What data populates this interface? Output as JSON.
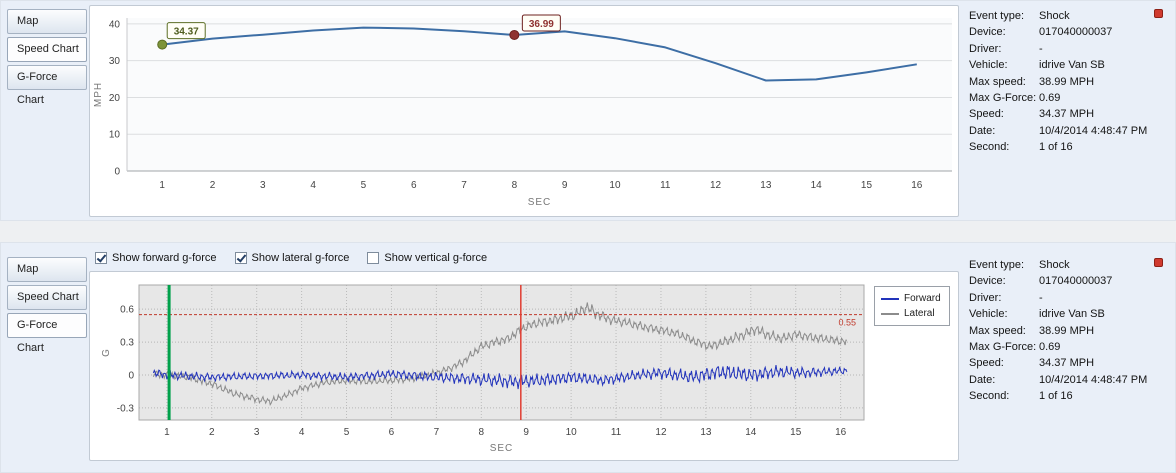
{
  "tabs": {
    "items": [
      "Map",
      "Speed Chart",
      "G-Force Chart"
    ]
  },
  "panels": {
    "top": {
      "active_tab": "Speed Chart"
    },
    "bottom": {
      "active_tab": "G-Force Chart"
    }
  },
  "gforce_toolbar": {
    "checkboxes": [
      {
        "label": "Show forward g-force",
        "checked": true
      },
      {
        "label": "Show lateral g-force",
        "checked": true
      },
      {
        "label": "Show vertical g-force",
        "checked": false
      }
    ]
  },
  "legend": {
    "entries": [
      {
        "label": "Forward",
        "color": "#2233bb"
      },
      {
        "label": "Lateral",
        "color": "#8c8c8c"
      }
    ]
  },
  "details": {
    "rows": [
      {
        "label": "Event type:",
        "value": "Shock"
      },
      {
        "label": "Device:",
        "value": "017040000037"
      },
      {
        "label": "Driver:",
        "value": "-"
      },
      {
        "label": "Vehicle:",
        "value": "idrive Van SB"
      },
      {
        "label": "Max speed:",
        "value": "38.99 MPH"
      },
      {
        "label": "Max G-Force:",
        "value": "0.69"
      },
      {
        "label": "Speed:",
        "value": "34.37 MPH"
      },
      {
        "label": "Date:",
        "value": "10/4/2014 4:48:47 PM"
      },
      {
        "label": "Second:",
        "value": "1 of 16"
      }
    ]
  },
  "chart_data": [
    {
      "type": "line",
      "title": "Speed Chart",
      "xlabel": "SEC",
      "ylabel": "MPH",
      "x": [
        1,
        2,
        3,
        4,
        5,
        6,
        7,
        8,
        9,
        10,
        11,
        12,
        13,
        14,
        15,
        16
      ],
      "values": [
        34.37,
        36.0,
        37.05,
        38.2,
        38.99,
        38.75,
        38.0,
        36.99,
        37.95,
        36.1,
        33.6,
        29.3,
        24.6,
        24.9,
        26.8,
        29.0
      ],
      "x_ticks": [
        1,
        2,
        3,
        4,
        5,
        6,
        7,
        8,
        9,
        10,
        11,
        12,
        13,
        14,
        15,
        16
      ],
      "y_ticks": [
        0,
        10,
        20,
        30,
        40
      ],
      "xlim": [
        0.3,
        16.7
      ],
      "ylim": [
        0,
        41.6
      ],
      "grid": true,
      "line_color": "#3d6ea5",
      "annotations": [
        {
          "x": 1,
          "value": 34.37,
          "label": "34.37",
          "marker_color": "#7d943a",
          "marker_border": "#5c6e25",
          "text_color": "#4f5d1e",
          "box_dx": 5,
          "box_dy": -22
        },
        {
          "x": 8,
          "value": 36.99,
          "label": "36.99",
          "marker_color": "#8f3230",
          "marker_border": "#6d201e",
          "text_color": "#8f3230",
          "box_dx": 8,
          "box_dy": -20
        }
      ]
    },
    {
      "type": "line",
      "title": "G-Force Chart",
      "xlabel": "SEC",
      "ylabel": "G",
      "x_ticks": [
        1,
        2,
        3,
        4,
        5,
        6,
        7,
        8,
        9,
        10,
        11,
        12,
        13,
        14,
        15,
        16
      ],
      "y_ticks": [
        -0.3,
        0,
        0.3,
        0.6
      ],
      "xlim": [
        0.38,
        16.52
      ],
      "ylim": [
        -0.41,
        0.82
      ],
      "grid": "dotted",
      "legend_position": "right",
      "threshold": {
        "value": 0.55,
        "label": "0.55",
        "color": "#c0392b"
      },
      "event_lines": [
        {
          "name": "event-start",
          "x": 1.05,
          "color": "#00a14b",
          "width": 3
        },
        {
          "name": "shock-moment",
          "x": 8.88,
          "color": "#e03c31",
          "width": 1.5
        }
      ],
      "sample_range": [
        0.7,
        16.15
      ],
      "series": [
        {
          "name": "Forward",
          "color": "#2233bb",
          "seed": 1.3,
          "anchors": [
            [
              0.7,
              0.02
            ],
            [
              1,
              0
            ],
            [
              2,
              -0.02
            ],
            [
              3,
              -0.01
            ],
            [
              4,
              0
            ],
            [
              5,
              -0.02
            ],
            [
              6,
              0.01
            ],
            [
              7,
              -0.02
            ],
            [
              8,
              -0.04
            ],
            [
              8.7,
              -0.06
            ],
            [
              9.3,
              -0.05
            ],
            [
              10,
              -0.02
            ],
            [
              10.7,
              -0.05
            ],
            [
              11.5,
              0
            ],
            [
              12,
              0.02
            ],
            [
              12.7,
              -0.02
            ],
            [
              13.3,
              0.03
            ],
            [
              14,
              0
            ],
            [
              14.6,
              0.03
            ],
            [
              15.2,
              0.02
            ],
            [
              16.15,
              0.04
            ]
          ],
          "amp": [
            [
              0.7,
              0.045
            ],
            [
              3,
              0.04
            ],
            [
              6,
              0.045
            ],
            [
              7.5,
              0.06
            ],
            [
              8.5,
              0.075
            ],
            [
              9.5,
              0.07
            ],
            [
              10.5,
              0.06
            ],
            [
              11.5,
              0.055
            ],
            [
              12.5,
              0.07
            ],
            [
              13.5,
              0.085
            ],
            [
              14.5,
              0.07
            ],
            [
              15.5,
              0.05
            ],
            [
              16.15,
              0.04
            ]
          ]
        },
        {
          "name": "Lateral",
          "color": "#8c8c8c",
          "seed": 4.7,
          "anchors": [
            [
              0.7,
              0.01
            ],
            [
              1,
              0
            ],
            [
              1.5,
              -0.02
            ],
            [
              2,
              -0.08
            ],
            [
              2.5,
              -0.17
            ],
            [
              3,
              -0.22
            ],
            [
              3.3,
              -0.24
            ],
            [
              3.7,
              -0.18
            ],
            [
              4,
              -0.12
            ],
            [
              4.5,
              -0.07
            ],
            [
              5,
              -0.05
            ],
            [
              5.5,
              -0.06
            ],
            [
              6,
              -0.05
            ],
            [
              6.5,
              -0.03
            ],
            [
              7,
              0.02
            ],
            [
              7.3,
              0.06
            ],
            [
              7.6,
              0.12
            ],
            [
              8,
              0.26
            ],
            [
              8.3,
              0.3
            ],
            [
              8.6,
              0.33
            ],
            [
              8.9,
              0.42
            ],
            [
              9.2,
              0.47
            ],
            [
              9.5,
              0.49
            ],
            [
              9.8,
              0.52
            ],
            [
              10.1,
              0.55
            ],
            [
              10.35,
              0.62
            ],
            [
              10.6,
              0.55
            ],
            [
              10.9,
              0.5
            ],
            [
              11.2,
              0.48
            ],
            [
              11.6,
              0.44
            ],
            [
              12,
              0.41
            ],
            [
              12.4,
              0.37
            ],
            [
              12.8,
              0.3
            ],
            [
              13.1,
              0.26
            ],
            [
              13.4,
              0.3
            ],
            [
              13.8,
              0.36
            ],
            [
              14.1,
              0.42
            ],
            [
              14.4,
              0.36
            ],
            [
              14.7,
              0.33
            ],
            [
              15,
              0.37
            ],
            [
              15.4,
              0.34
            ],
            [
              15.8,
              0.32
            ],
            [
              16.15,
              0.3
            ]
          ],
          "amp": [
            [
              0.7,
              0.04
            ],
            [
              7,
              0.035
            ],
            [
              8,
              0.05
            ],
            [
              9,
              0.05
            ],
            [
              10,
              0.06
            ],
            [
              10.5,
              0.065
            ],
            [
              11,
              0.05
            ],
            [
              13,
              0.05
            ],
            [
              14,
              0.06
            ],
            [
              16.15,
              0.045
            ]
          ]
        }
      ]
    }
  ]
}
